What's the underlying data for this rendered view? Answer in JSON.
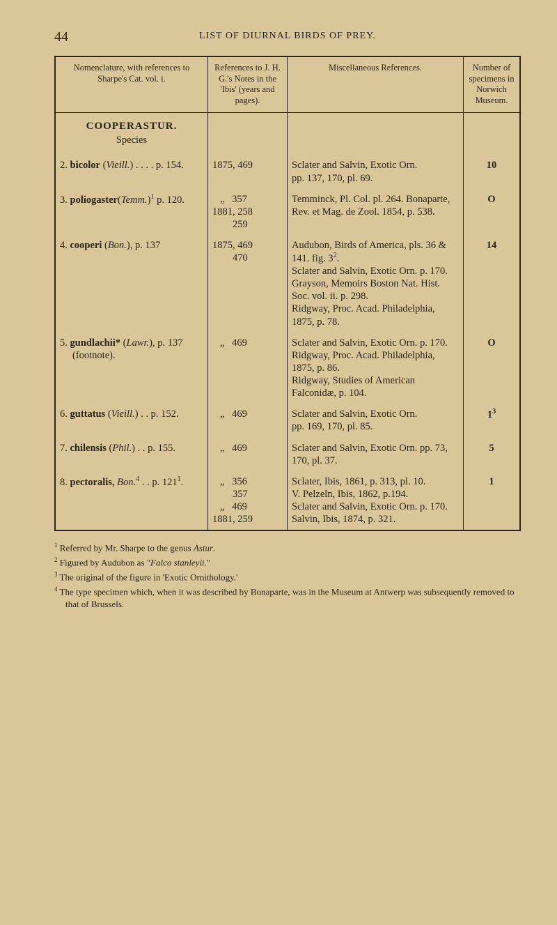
{
  "page_number": "44",
  "running_head": "LIST OF DIURNAL BIRDS OF PREY.",
  "columns": {
    "nomenclature": "Nomenclature, with references to Sharpe's Cat. vol. i.",
    "references": "References to J. H. G.'s Notes in the 'Ibis' (years and pages).",
    "miscellaneous": "Miscellaneous References.",
    "number": "Number of speci­mens in Norwich Museum."
  },
  "genus": "COOPERASTUR.",
  "species_label": "Species",
  "rows": [
    {
      "num": "2.",
      "name_html": "<b>bicolor</b> (<i>Vieill.</i>) . . . . p. 154.",
      "ref": "1875, 469",
      "misc_html": "Sclater and Salvin, Exotic Orn. pp. 137, 170, pl. 69.",
      "count": "10"
    },
    {
      "num": "3.",
      "name_html": "<b>poliogaster</b>(<i>Temm.</i>)<sup>1</sup> p. 120.",
      "ref": "   „   357\n1881, 258\n        259",
      "misc_html": "Temminck, Pl. Col. pl. 264. Bonaparte, Rev. et Mag. de Zool. 1854, p. 538.",
      "count": "O"
    },
    {
      "num": "4.",
      "name_html": "<b>cooperi</b> (<i>Bon.</i>), p. 137",
      "ref": "1875, 469\n        470",
      "misc_html": "Audubon, Birds of America, pls. 36 &amp; 141. fig. 3<sup>2</sup>.<br>Sclater and Salvin, Exotic Orn. p. 170.<br>Grayson, Memoirs Boston Nat. Hist. Soc. vol. ii. p. 298.<br>Ridgway, Proc. Acad. Phi­ladelphia, 1875, p. 78.",
      "count": "14"
    },
    {
      "num": "5.",
      "name_html": "<b>gundlachii*</b> (<i>Lawr.</i>), p. 137 (footnote).",
      "ref": "   „   469",
      "misc_html": "Sclater and Salvin, Exotic Orn. p. 170.<br>Ridgway, Proc. Acad. Phi­ladelphia, 1875, p. 86.<br>Ridgway, Studies of Ame­rican Falconidæ, p. 104.",
      "count": "O"
    },
    {
      "num": "6.",
      "name_html": "<b>guttatus</b> (<i>Vieill.</i>) . . p. 152.",
      "ref": "   „   469",
      "misc_html": "Sclater and Salvin, Exotic Orn. pp. 169, 170, pl. 85.",
      "count": "1<sup>3</sup>"
    },
    {
      "num": "7.",
      "name_html": "<b>chilensis</b> (<i>Phil.</i>) . . p. 155.",
      "ref": "   „   469",
      "misc_html": "Sclater and Salvin, Exotic Orn. pp. 73, 170, pl. 37.",
      "count": "5"
    },
    {
      "num": "8.",
      "name_html": "<b>pectoralis,</b> <i>Bon.</i><sup>4</sup> . . p. 121<sup>1</sup>.",
      "ref": "   „   356\n        357\n   „   469\n1881, 259",
      "misc_html": "Sclater, Ibis, 1861, p. 313, pl. 10.<br>V. Pelzeln, Ibis, 1862, p.194.<br>Sclater and Salvin, Exotic Orn. p. 170.<br>Salvin, Ibis, 1874, p. 321.",
      "count": "1"
    }
  ],
  "footnotes": [
    "<sup>1</sup> Referred by Mr. Sharpe to the genus <i>Astur</i>.",
    "<sup>2</sup> Figured by Audubon as \"<i>Falco stanleyii.</i>\"",
    "<sup>3</sup> The original of the figure in 'Exotic Ornithology.'",
    "<sup>4</sup> The type specimen which, when it was described by Bonaparte, was in the Museum at Antwerp was subsequently removed to that of Brussels."
  ]
}
